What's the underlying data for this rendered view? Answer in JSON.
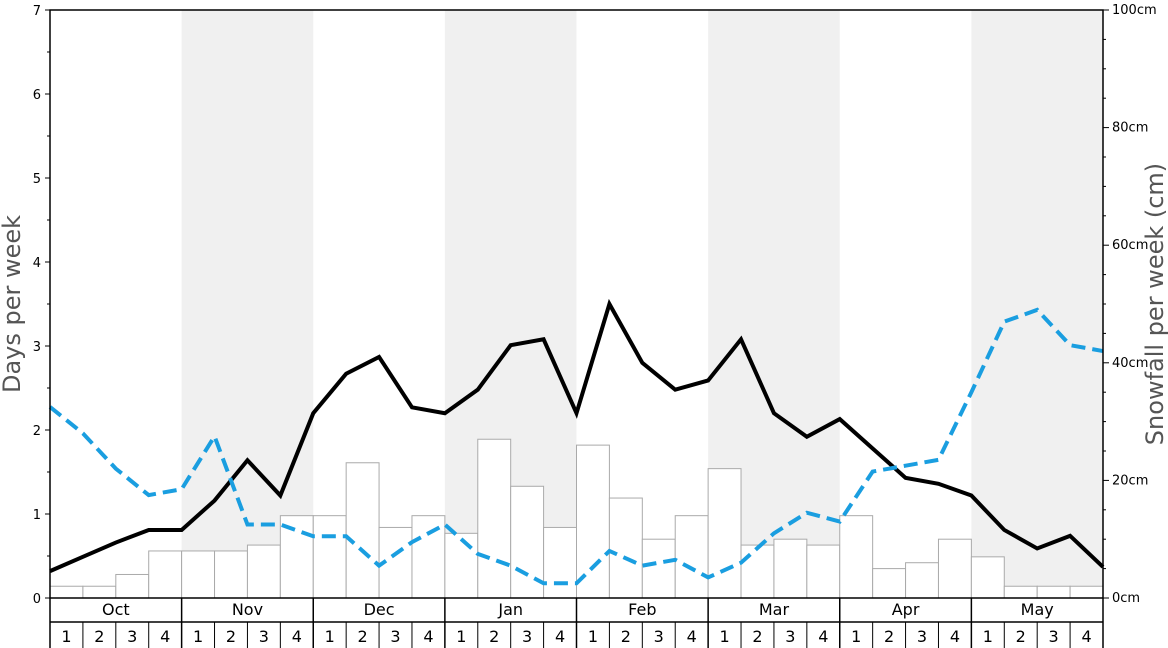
{
  "chart_data": {
    "type": "bar+line",
    "title": "",
    "ylabel_left": "Days per week",
    "ylabel_right": "Snowfall per week (cm)",
    "ylim_left": [
      0,
      7
    ],
    "ylim_right": [
      0,
      100
    ],
    "left_ticks": [
      "0",
      "1",
      "2",
      "3",
      "4",
      "5",
      "6",
      "7"
    ],
    "right_ticks": [
      "0cm",
      "20cm",
      "40cm",
      "60cm",
      "80cm",
      "100cm"
    ],
    "months": [
      "Oct",
      "Nov",
      "Dec",
      "Jan",
      "Feb",
      "Mar",
      "Apr",
      "May"
    ],
    "weeks": [
      "1",
      "2",
      "3",
      "4"
    ],
    "shaded_months": [
      "Nov",
      "Jan",
      "Mar",
      "May"
    ],
    "grid": false,
    "series": [
      {
        "kind": "bar",
        "axis": "right",
        "color": "#ffffff",
        "edge_color": "#aaaaaa",
        "values": [
          2.0,
          2.0,
          4.0,
          8.0,
          8.0,
          8.0,
          9.0,
          14.0,
          14.0,
          23.0,
          12.0,
          14.0,
          11.0,
          27.0,
          19.0,
          12.0,
          26.0,
          17.0,
          10.0,
          14.0,
          22.0,
          9.0,
          10.0,
          9.0,
          14.0,
          5.0,
          6.0,
          10.0,
          7.0,
          2.0,
          2.0,
          2.0
        ]
      },
      {
        "kind": "line",
        "axis": "left",
        "color": "#000000",
        "style": "solid",
        "values": [
          0.32,
          0.49,
          0.66,
          0.81,
          0.81,
          1.16,
          1.64,
          1.22,
          2.2,
          2.67,
          2.87,
          2.27,
          2.2,
          2.48,
          3.01,
          3.08,
          2.2,
          3.5,
          2.8,
          2.48,
          2.59,
          3.08,
          2.2,
          1.92,
          2.13,
          1.78,
          1.43,
          1.36,
          1.22,
          0.81,
          0.59,
          0.74,
          0.37
        ]
      },
      {
        "kind": "line",
        "axis": "right",
        "color": "#1a9ee0",
        "style": "dashed",
        "values": [
          32.5,
          28.0,
          22.0,
          17.5,
          18.5,
          27.5,
          12.5,
          12.5,
          10.5,
          10.5,
          5.5,
          9.5,
          12.5,
          7.5,
          5.5,
          2.5,
          2.5,
          8.0,
          5.5,
          6.5,
          3.5,
          6.0,
          11.0,
          14.5,
          13.0,
          21.5,
          22.5,
          23.5,
          35.0,
          47.0,
          49.0,
          43.0,
          42.0
        ]
      }
    ]
  }
}
